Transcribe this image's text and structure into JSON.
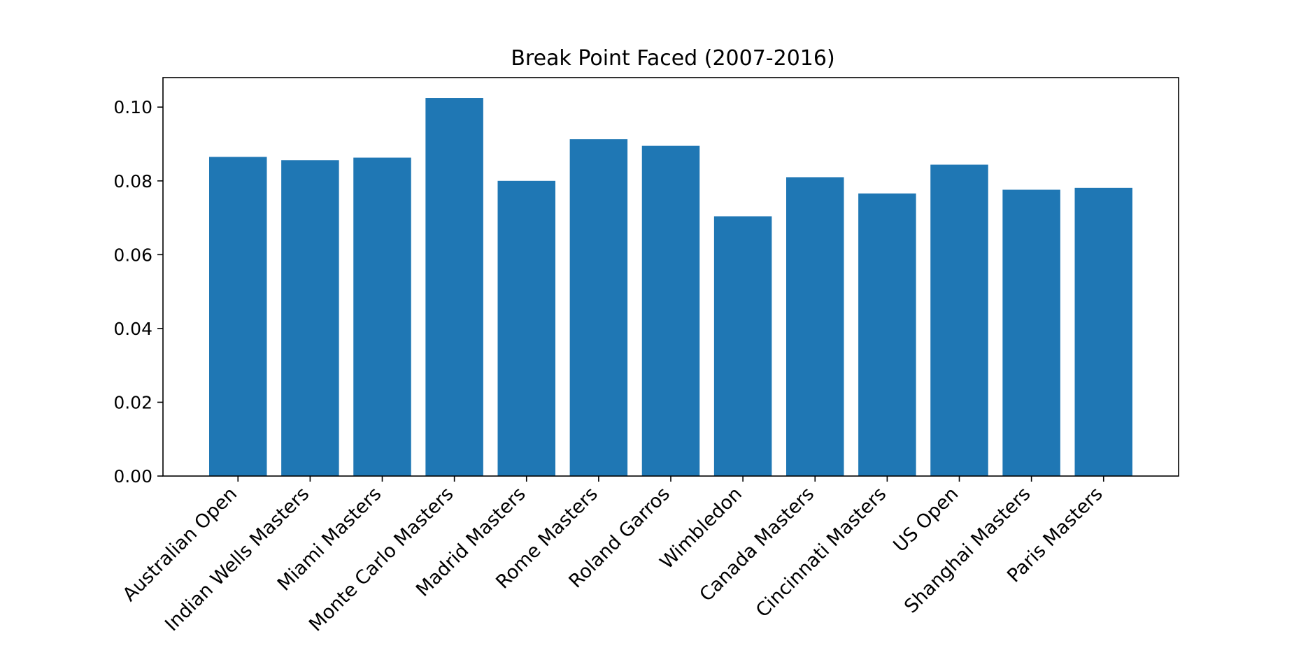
{
  "chart_data": {
    "type": "bar",
    "title": "Break Point Faced (2007-2016)",
    "xlabel": "",
    "ylabel": "",
    "categories": [
      "Australian Open",
      "Indian Wells Masters",
      "Miami Masters",
      "Monte Carlo Masters",
      "Madrid Masters",
      "Rome Masters",
      "Roland Garros",
      "Wimbledon",
      "Canada Masters",
      "Cincinnati Masters",
      "US Open",
      "Shanghai Masters",
      "Paris Masters"
    ],
    "values": [
      0.0865,
      0.0856,
      0.0863,
      0.1025,
      0.08,
      0.0913,
      0.0895,
      0.0704,
      0.081,
      0.0766,
      0.0844,
      0.0776,
      0.0781
    ],
    "ylim": [
      0,
      0.108
    ],
    "yticks": [
      0.0,
      0.02,
      0.04,
      0.06,
      0.08,
      0.1
    ],
    "ytick_labels": [
      "0.00",
      "0.02",
      "0.04",
      "0.06",
      "0.08",
      "0.10"
    ],
    "bar_color": "#1f77b4",
    "grid": false,
    "legend": "none",
    "xtick_rotation": 45
  }
}
